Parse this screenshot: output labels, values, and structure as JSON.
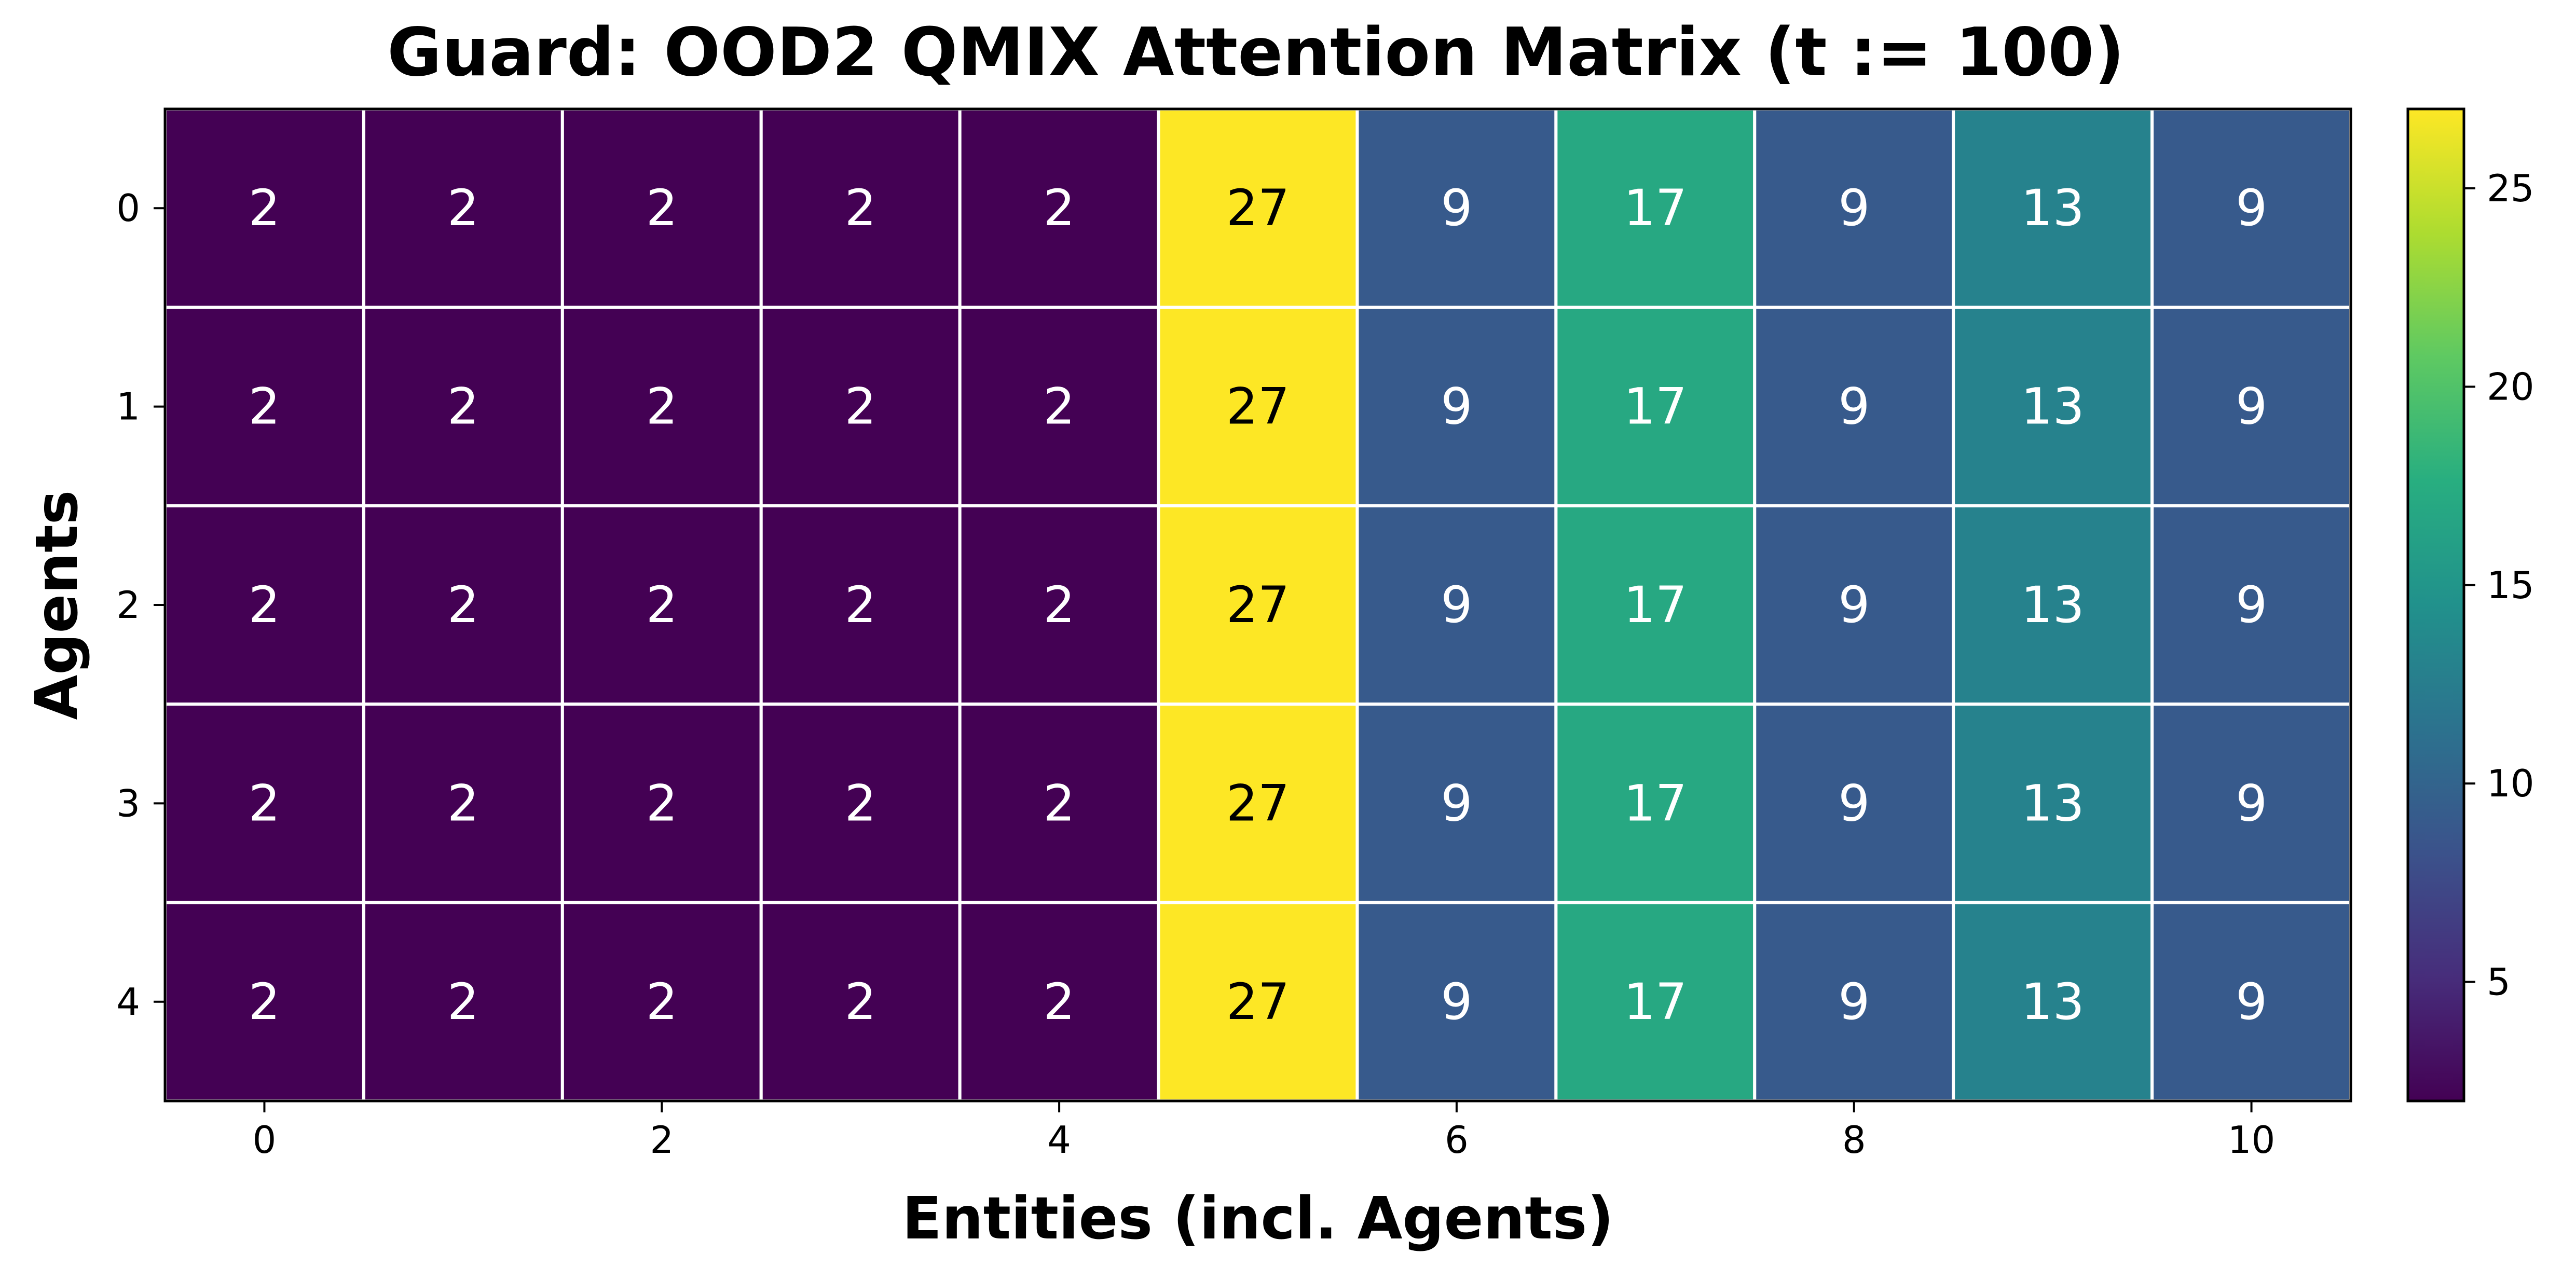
{
  "chart_data": {
    "type": "heatmap",
    "title": "Guard: OOD2 QMIX Attention Matrix (t := 100)",
    "xlabel": "Entities (incl. Agents)",
    "ylabel": "Agents",
    "rows": [
      0,
      1,
      2,
      3,
      4
    ],
    "columns": [
      0,
      1,
      2,
      3,
      4,
      5,
      6,
      7,
      8,
      9,
      10
    ],
    "x_ticks": [
      "0",
      "2",
      "4",
      "6",
      "8",
      "10"
    ],
    "y_ticks": [
      "0",
      "1",
      "2",
      "3",
      "4"
    ],
    "values": [
      [
        2,
        2,
        2,
        2,
        2,
        27,
        9,
        17,
        9,
        13,
        9
      ],
      [
        2,
        2,
        2,
        2,
        2,
        27,
        9,
        17,
        9,
        13,
        9
      ],
      [
        2,
        2,
        2,
        2,
        2,
        27,
        9,
        17,
        9,
        13,
        9
      ],
      [
        2,
        2,
        2,
        2,
        2,
        27,
        9,
        17,
        9,
        13,
        9
      ],
      [
        2,
        2,
        2,
        2,
        2,
        27,
        9,
        17,
        9,
        13,
        9
      ]
    ],
    "colorscale": "viridis",
    "vmin": 2,
    "vmax": 27,
    "colorbar_ticks": [
      "5",
      "10",
      "15",
      "20",
      "25"
    ],
    "grid": true,
    "cell_annotations": true
  }
}
